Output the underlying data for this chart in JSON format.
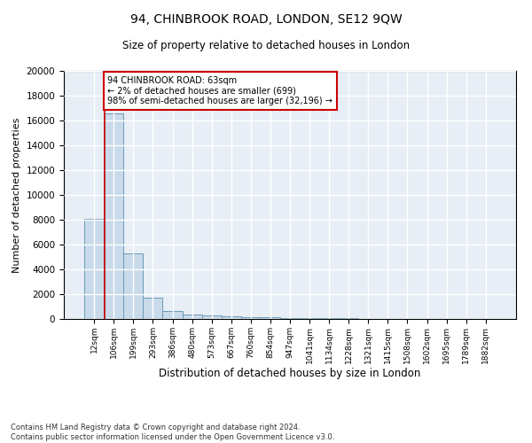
{
  "title": "94, CHINBROOK ROAD, LONDON, SE12 9QW",
  "subtitle": "Size of property relative to detached houses in London",
  "xlabel": "Distribution of detached houses by size in London",
  "ylabel": "Number of detached properties",
  "bar_color": "#c9daea",
  "bar_edge_color": "#6b9ab8",
  "annotation_box_color": "#cc0000",
  "vline_color": "#cc0000",
  "annotation_text": "94 CHINBROOK ROAD: 63sqm\n← 2% of detached houses are smaller (699)\n98% of semi-detached houses are larger (32,196) →",
  "footnote": "Contains HM Land Registry data © Crown copyright and database right 2024.\nContains public sector information licensed under the Open Government Licence v3.0.",
  "categories": [
    "12sqm",
    "106sqm",
    "199sqm",
    "293sqm",
    "386sqm",
    "480sqm",
    "573sqm",
    "667sqm",
    "760sqm",
    "854sqm",
    "947sqm",
    "1041sqm",
    "1134sqm",
    "1228sqm",
    "1321sqm",
    "1415sqm",
    "1508sqm",
    "1602sqm",
    "1695sqm",
    "1789sqm",
    "1882sqm"
  ],
  "values": [
    8100,
    16550,
    5300,
    1750,
    650,
    350,
    270,
    200,
    155,
    120,
    90,
    70,
    55,
    40,
    30,
    22,
    16,
    12,
    9,
    7,
    5
  ],
  "ylim": [
    0,
    20000
  ],
  "yticks": [
    0,
    2000,
    4000,
    6000,
    8000,
    10000,
    12000,
    14000,
    16000,
    18000,
    20000
  ],
  "vline_x": 0.5,
  "background_color": "#e8eef5",
  "grid_color": "#ffffff",
  "title_fontsize": 10,
  "subtitle_fontsize": 8.5,
  "ylabel_fontsize": 8,
  "xlabel_fontsize": 8.5,
  "ytick_fontsize": 7.5,
  "xtick_fontsize": 6.5,
  "footnote_fontsize": 6
}
